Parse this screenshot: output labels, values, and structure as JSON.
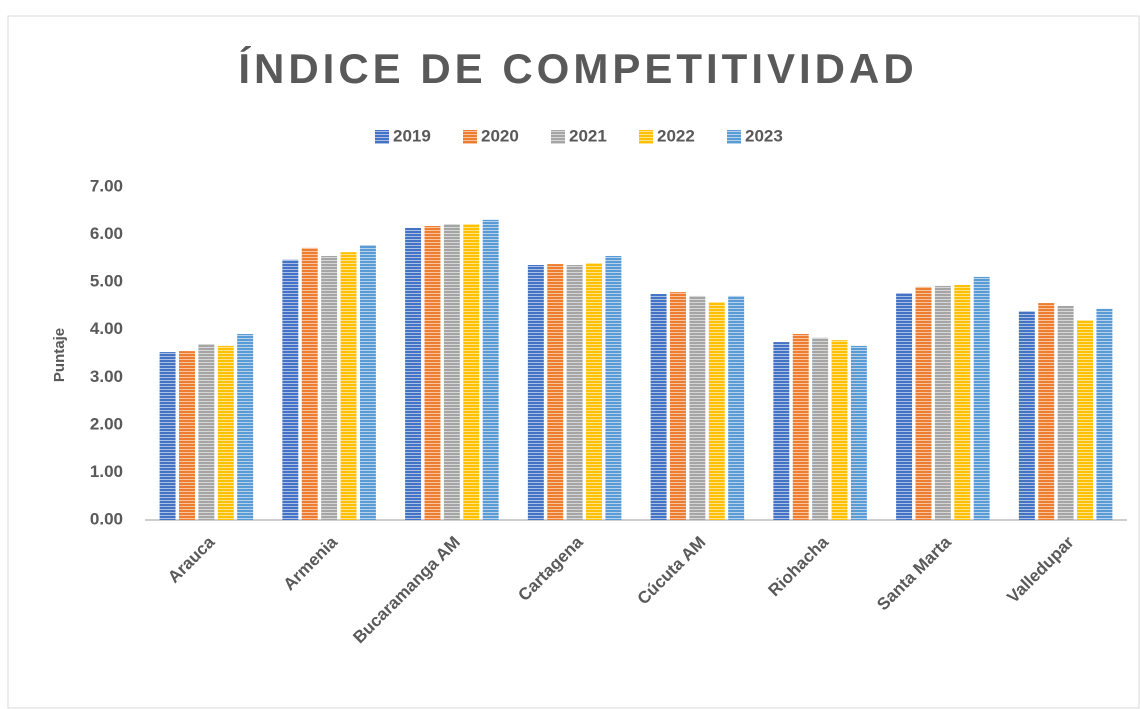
{
  "chart_data": {
    "type": "bar",
    "title": "ÍNDICE DE COMPETITIVIDAD",
    "y_label": "Puntaje",
    "categories": [
      "Arauca",
      "Armenia",
      "Bucaramanga AM",
      "Cartagena",
      "Cúcuta AM",
      "Riohacha",
      "Santa Marta",
      "Valledupar"
    ],
    "series": [
      {
        "name": "2019",
        "color": "#4472c4",
        "values": [
          3.53,
          5.47,
          6.14,
          5.36,
          4.75,
          3.74,
          4.77,
          4.39
        ]
      },
      {
        "name": "2020",
        "color": "#ed7d31",
        "values": [
          3.55,
          5.72,
          6.18,
          5.38,
          4.79,
          3.91,
          4.9,
          4.56
        ]
      },
      {
        "name": "2021",
        "color": "#a5a5a5",
        "values": [
          3.7,
          5.55,
          6.22,
          5.36,
          4.71,
          3.83,
          4.92,
          4.5
        ]
      },
      {
        "name": "2022",
        "color": "#ffc000",
        "values": [
          3.66,
          5.63,
          6.22,
          5.4,
          4.58,
          3.78,
          4.94,
          4.2
        ]
      },
      {
        "name": "2023",
        "color": "#5b9bd5",
        "values": [
          3.91,
          5.78,
          6.31,
          5.55,
          4.71,
          3.66,
          5.11,
          4.44
        ]
      }
    ],
    "ylim": [
      0,
      7
    ],
    "yticks": [
      {
        "value": 0,
        "label": "0.00"
      },
      {
        "value": 1,
        "label": "1.00"
      },
      {
        "value": 2,
        "label": "2.00"
      },
      {
        "value": 3,
        "label": "3.00"
      },
      {
        "value": 4,
        "label": "4.00"
      },
      {
        "value": 5,
        "label": "5.00"
      },
      {
        "value": 6,
        "label": "6.00"
      },
      {
        "value": 7,
        "label": "7.00"
      }
    ],
    "grid": false,
    "legend": "top"
  }
}
